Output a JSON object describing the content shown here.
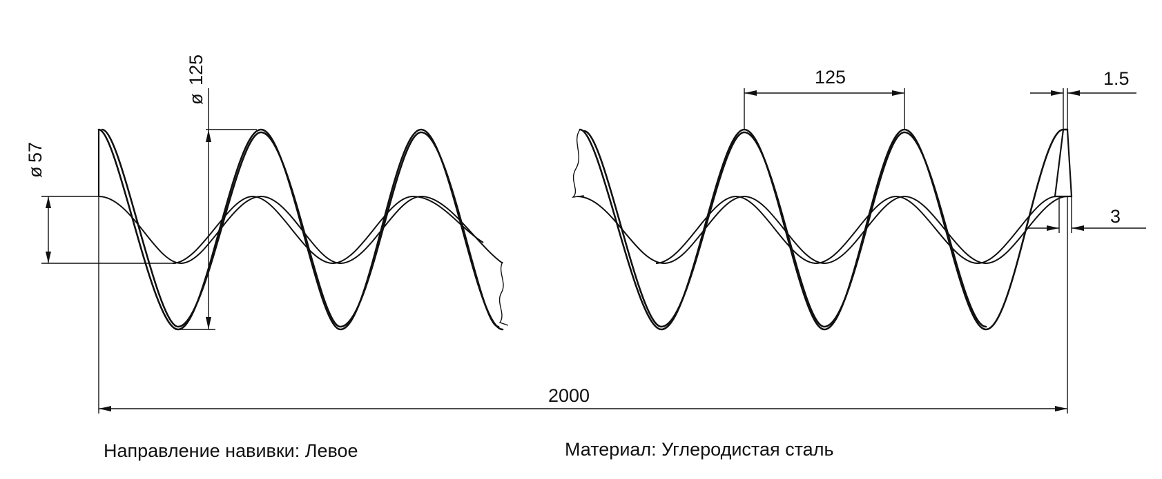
{
  "dimensions": {
    "outer_diameter": "125",
    "inner_diameter": "57",
    "pitch": "125",
    "flight_thickness": "1.5",
    "tip_thickness": "3",
    "total_length": "2000",
    "diameter_symbol": "ø"
  },
  "notes": {
    "winding_direction": "Направление навивки: Левое",
    "material": "Материал:  Углеродистая сталь"
  }
}
